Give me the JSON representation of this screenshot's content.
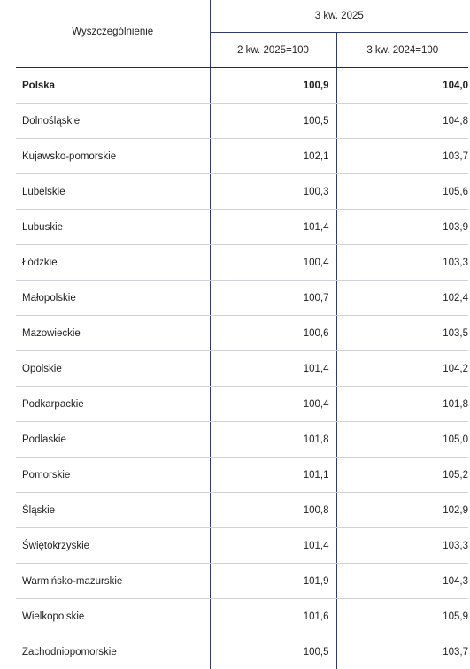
{
  "table": {
    "stub_header": "Wyszczególnienie",
    "period_header": "3 kw. 2025",
    "col1_header": "2 kw. 2025=100",
    "col2_header": "3 kw. 2024=100",
    "rows": [
      {
        "name": "Polska",
        "v1": "100,9",
        "v2": "104,0"
      },
      {
        "name": "Dolnośląskie",
        "v1": "100,5",
        "v2": "104,8"
      },
      {
        "name": "Kujawsko-pomorskie",
        "v1": "102,1",
        "v2": "103,7"
      },
      {
        "name": "Lubelskie",
        "v1": "100,3",
        "v2": "105,6"
      },
      {
        "name": "Lubuskie",
        "v1": "101,4",
        "v2": "103,9"
      },
      {
        "name": "Łódzkie",
        "v1": "100,4",
        "v2": "103,3"
      },
      {
        "name": "Małopolskie",
        "v1": "100,7",
        "v2": "102,4"
      },
      {
        "name": "Mazowieckie",
        "v1": "100,6",
        "v2": "103,5"
      },
      {
        "name": "Opolskie",
        "v1": "101,4",
        "v2": "104,2"
      },
      {
        "name": "Podkarpackie",
        "v1": "100,4",
        "v2": "101,8"
      },
      {
        "name": "Podlaskie",
        "v1": "101,8",
        "v2": "105,0"
      },
      {
        "name": "Pomorskie",
        "v1": "101,1",
        "v2": "105,2"
      },
      {
        "name": "Śląskie",
        "v1": "100,8",
        "v2": "102,9"
      },
      {
        "name": "Świętokrzyskie",
        "v1": "101,4",
        "v2": "103,3"
      },
      {
        "name": "Warmińsko-mazurskie",
        "v1": "101,9",
        "v2": "104,3"
      },
      {
        "name": "Wielkopolskie",
        "v1": "101,6",
        "v2": "105,9"
      },
      {
        "name": "Zachodniopomorskie",
        "v1": "100,5",
        "v2": "103,7"
      }
    ]
  },
  "colors": {
    "rule_dark": "#1a2b52",
    "rule_light": "#cfd3d9",
    "text": "#1f1f1f"
  }
}
